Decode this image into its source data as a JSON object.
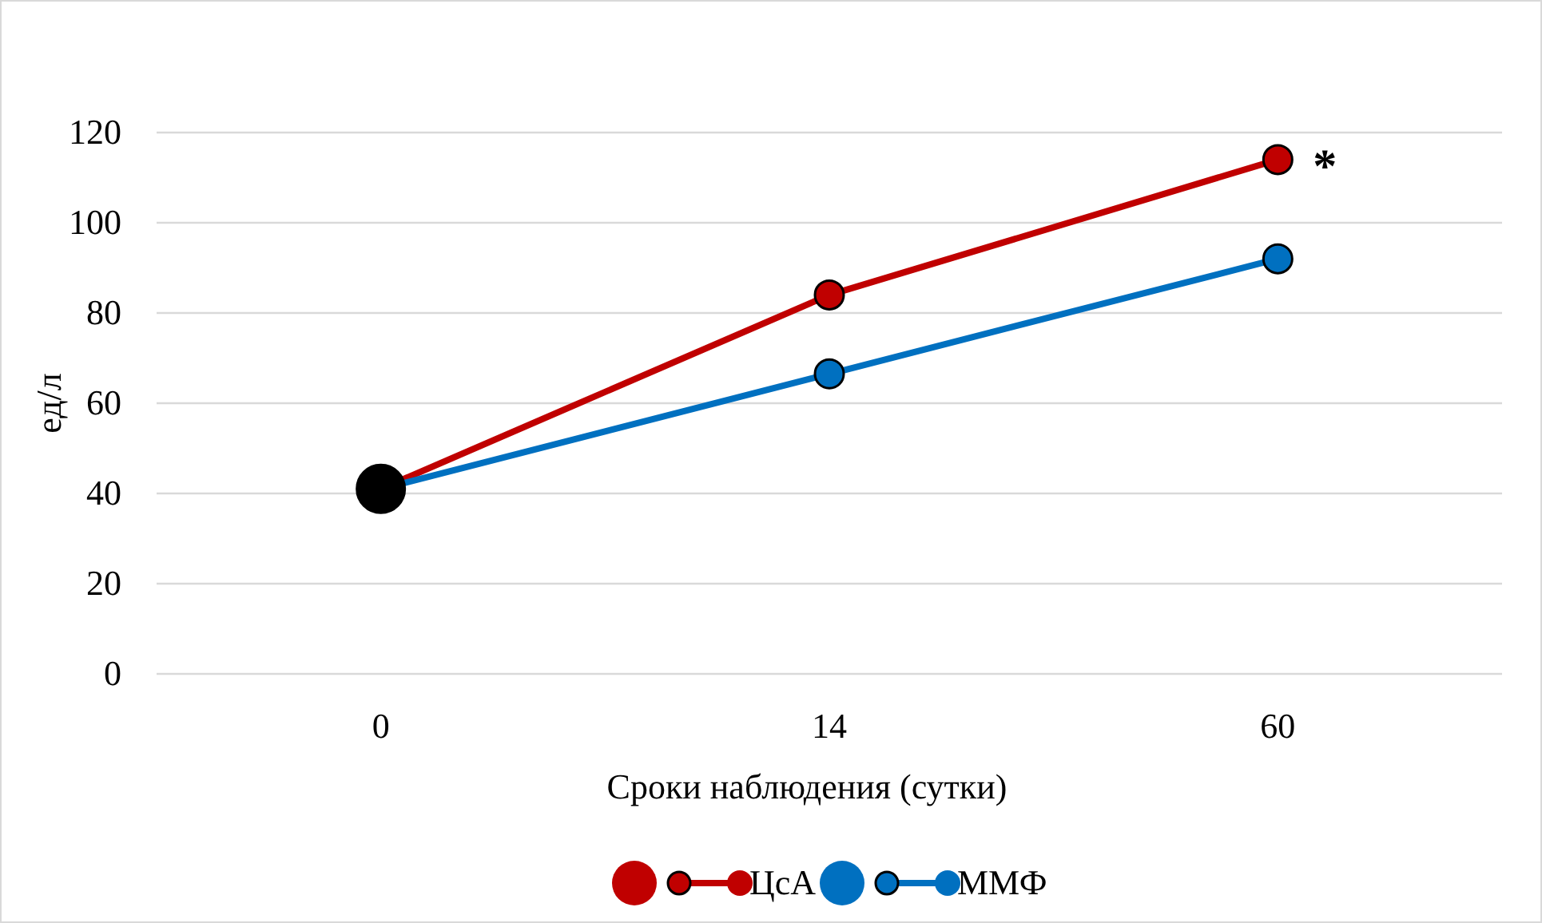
{
  "chart_data": {
    "type": "line",
    "xlabel": "Сроки наблюдения (сутки)",
    "ylabel": "ед/л",
    "categories": [
      "0",
      "14",
      "60"
    ],
    "series": [
      {
        "name": "ЦсА",
        "color": "#c00000",
        "values": [
          41,
          84,
          114
        ]
      },
      {
        "name": "ММФ",
        "color": "#0070c0",
        "values": [
          41,
          66.5,
          92
        ]
      },
      {
        "type": "scatter",
        "color": "#000000",
        "x": [
          "0"
        ],
        "values": [
          41
        ]
      }
    ],
    "ylim": [
      0,
      120
    ],
    "yticks": [
      0,
      20,
      40,
      60,
      80,
      100,
      120
    ],
    "grid": "y",
    "legend": "bottom",
    "marker": "circle",
    "line_style": "solid",
    "annotations": [
      {
        "text": "*",
        "x": "60",
        "y": 114
      }
    ]
  }
}
